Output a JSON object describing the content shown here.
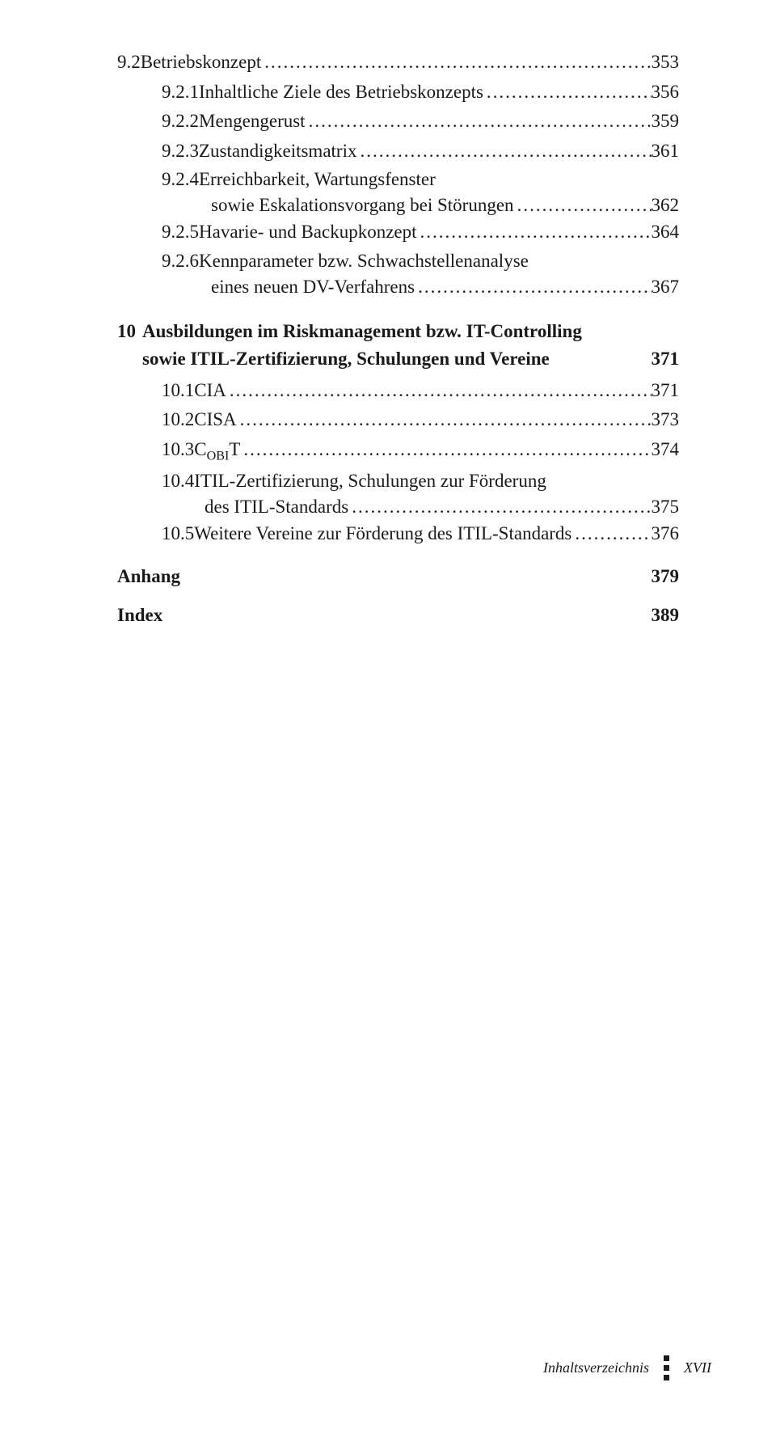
{
  "toc": {
    "entries": [
      {
        "level": 0,
        "num": "9.2 ",
        "title": "Betriebskonzept",
        "page": "353"
      },
      {
        "level": 1,
        "num": "9.2.1 ",
        "title": "Inhaltliche Ziele des Betriebskonzepts",
        "page": "356"
      },
      {
        "level": 1,
        "num": "9.2.2 ",
        "title": "Mengengerust",
        "leaderLong": true,
        "page": "359"
      },
      {
        "level": 1,
        "num": "9.2.3 ",
        "title": "Zustandigkeitsmatrix",
        "page": "361"
      },
      {
        "level": 1,
        "num": "9.2.4 ",
        "title_lines": [
          "Erreichbarkeit, Wartungsfenster",
          "sowie Eskalationsvorgang bei Störungen"
        ],
        "page": "362"
      },
      {
        "level": 1,
        "num": "9.2.5 ",
        "title": "Havarie- und Backupkonzept",
        "page": "364"
      },
      {
        "level": 1,
        "num": "9.2.6 ",
        "title_lines": [
          "Kennparameter bzw. Schwachstellenanalyse",
          "eines neuen DV-Verfahrens"
        ],
        "page": "367"
      }
    ],
    "chapter10": {
      "num": "10",
      "title_lines": [
        "Ausbildungen im Riskmanagement bzw. IT-Controlling",
        "sowie ITIL-Zertifizierung, Schulungen und Vereine"
      ],
      "page": "371",
      "subs": [
        {
          "num": "10.1 ",
          "title": "CIA",
          "page": "371"
        },
        {
          "num": "10.2 ",
          "title": "CISA",
          "page": "373"
        },
        {
          "num": "10.3 ",
          "title_html": "C<sub>OBI</sub>T",
          "page": "374"
        },
        {
          "num": "10.4 ",
          "title_lines": [
            "ITIL-Zertifizierung, Schulungen zur Förderung",
            "des ITIL-Standards"
          ],
          "page": "375"
        },
        {
          "num": "10.5 ",
          "title": "Weitere Vereine zur Förderung des ITIL-Standards",
          "page": "376"
        }
      ]
    },
    "anhang": {
      "label": "Anhang",
      "page": "379"
    },
    "index": {
      "label": "Index",
      "page": "389"
    }
  },
  "footer": {
    "label": "Inhaltsverzeichnis",
    "page_roman": "XVII"
  }
}
